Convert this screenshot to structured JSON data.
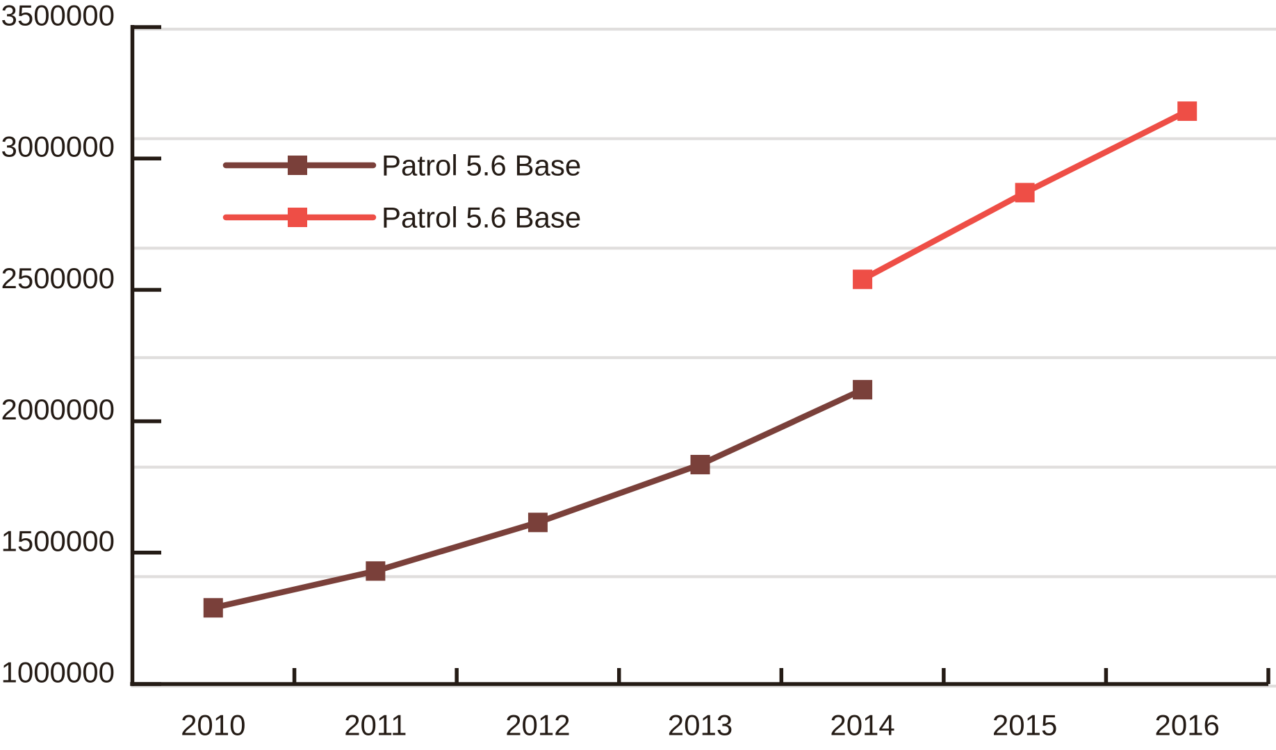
{
  "chart_data": {
    "type": "line",
    "title": "",
    "categories": [
      "2010",
      "2011",
      "2012",
      "2013",
      "2014",
      "2015",
      "2016"
    ],
    "y_axis": {
      "min": 1000000,
      "max": 3500000,
      "tick_step": 500000,
      "tick_labels": [
        "3500000",
        "3000000",
        "2500000",
        "2000000",
        "1500000",
        "1000000"
      ]
    },
    "series": [
      {
        "name": "Patrol 5.6 Base",
        "color": "#7a403a",
        "marker": "square",
        "x": [
          "2010",
          "2011",
          "2012",
          "2013",
          "2014"
        ],
        "values": [
          1290000,
          1430000,
          1615000,
          1835000,
          2120000
        ]
      },
      {
        "name": "Patrol 5.6 Base",
        "color": "#ee4e46",
        "marker": "square",
        "x": [
          "2014",
          "2015",
          "2016"
        ],
        "values": [
          2540000,
          2870000,
          3180000
        ]
      }
    ],
    "legend": {
      "position": "inside-upper-left",
      "entries": [
        "Patrol 5.6 Base",
        "Patrol 5.6 Base"
      ]
    },
    "grid": {
      "horizontal": true,
      "vertical": false
    },
    "colors": {
      "axis": "#241b15",
      "text": "#241b15",
      "gridline": "#e0dedd",
      "background": "#ffffff"
    }
  }
}
